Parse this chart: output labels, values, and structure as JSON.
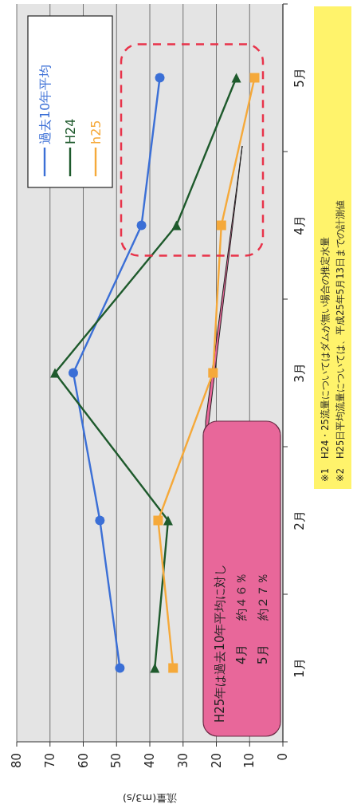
{
  "chart_data": {
    "type": "line",
    "orientation": "horizontal",
    "categories": [
      "5月",
      "4月",
      "3月",
      "2月",
      "1月"
    ],
    "xlabel": "流量(m3/s)",
    "xlim": [
      80,
      0
    ],
    "xticks": [
      80,
      70,
      60,
      50,
      40,
      30,
      20,
      10,
      0
    ],
    "grid": "x",
    "legend": "top left",
    "series": [
      {
        "name": "過去10年平均",
        "color": "#3b6fd6",
        "marker": "circle",
        "values": [
          37,
          42.5,
          63,
          55,
          49
        ]
      },
      {
        "name": "H24",
        "color": "#1e5a2c",
        "marker": "triangle",
        "values": [
          14,
          32,
          68.5,
          34.5,
          38.5
        ]
      },
      {
        "name": "h25",
        "color": "#f5a93a",
        "marker": "square",
        "values": [
          8.5,
          18.5,
          21,
          37.5,
          33
        ]
      }
    ],
    "annotations": [
      "H25年は過去10年平均に対し",
      "4月　　約４６％",
      "5月　　約２７％",
      "※1　H24・25流量についてはダムが無い場合の推定水量",
      "※2　H25日平均流量については、平成25年5月13日までの計測値"
    ]
  }
}
